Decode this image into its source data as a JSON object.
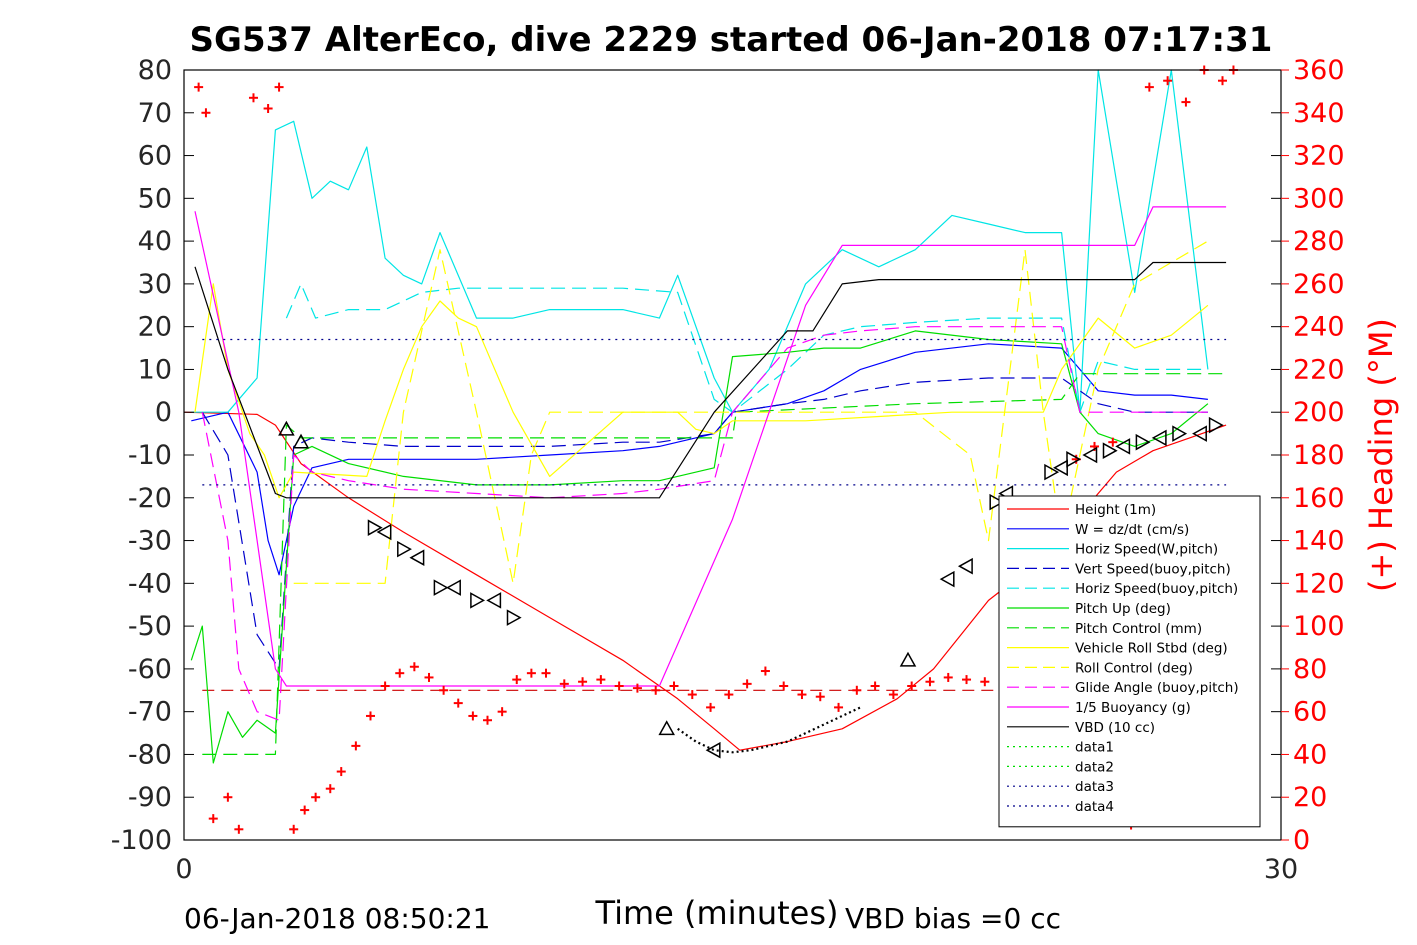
{
  "chart_data": {
    "type": "line",
    "title": "SG537 AlterEco, dive 2229 started 06-Jan-2018 07:17:31",
    "xlabel": "Time (minutes)",
    "ylabel_right": "(+) Heading (°M)",
    "xlim": [
      0,
      30
    ],
    "ylim": [
      -100,
      80
    ],
    "ylim_right": [
      0,
      360
    ],
    "x_ticks": [
      "0",
      "30"
    ],
    "y_ticks": [
      "80",
      "70",
      "60",
      "50",
      "40",
      "30",
      "20",
      "10",
      "0",
      "-10",
      "-20",
      "-30",
      "-40",
      "-50",
      "-60",
      "-70",
      "-80",
      "-90",
      "-100"
    ],
    "y_right_ticks": [
      "360",
      "340",
      "320",
      "300",
      "280",
      "260",
      "240",
      "220",
      "200",
      "180",
      "160",
      "140",
      "120",
      "100",
      "80",
      "60",
      "40",
      "20",
      "0"
    ],
    "footer_left": "06-Jan-2018 08:50:21",
    "footer_right": "VBD bias =0 cc",
    "legend_position": "bottom-right",
    "grid": false,
    "colors": {
      "red": "#ff0000",
      "blue": "#0000ff",
      "cyan": "#00e5e5",
      "green": "#00dd00",
      "yellow": "#ffff00",
      "magenta": "#ff00ff",
      "black": "#000000",
      "darkblue": "#00008b"
    },
    "series": [
      {
        "name": "Height (1m)",
        "color": "#ff0000",
        "style": "solid",
        "x": [
          0.0,
          2.0,
          2.5,
          3.2,
          4.5,
          6.0,
          8.0,
          10.0,
          12.0,
          13.5,
          14.5,
          15.2,
          16.5,
          18.0,
          19.5,
          20.5,
          22.0,
          23.5,
          24.5,
          25.5,
          26.5,
          27.5,
          28.5
        ],
        "y": [
          0,
          -0.5,
          -3,
          -12,
          -20,
          -28,
          -38,
          -48,
          -58,
          -67,
          -74,
          -79,
          -77,
          -74,
          -67,
          -60,
          -44,
          -34,
          -24,
          -14,
          -9,
          -6,
          -3
        ]
      },
      {
        "name": "W = dz/dt (cm/s)",
        "color": "#0000ff",
        "style": "solid",
        "x": [
          0.2,
          1.2,
          2.0,
          2.3,
          2.6,
          3.0,
          3.5,
          4.5,
          6.0,
          8.0,
          10.0,
          12.0,
          13.0,
          14.5,
          15.0,
          16.5,
          17.5,
          18.5,
          20.0,
          22.0,
          24.0,
          24.5,
          25.0,
          26.0,
          27.0,
          28.0
        ],
        "y": [
          -2,
          0,
          -14,
          -30,
          -38,
          -22,
          -13,
          -11,
          -11,
          -11,
          -10,
          -9,
          -8,
          -5,
          0,
          2,
          5,
          10,
          14,
          16,
          15,
          10,
          5,
          4,
          4,
          3
        ]
      },
      {
        "name": "Horiz Speed(W,pitch)",
        "color": "#00e5e5",
        "style": "solid",
        "x": [
          0.2,
          1.2,
          2.0,
          2.5,
          3.0,
          3.5,
          4.0,
          4.5,
          5.0,
          5.5,
          6.0,
          6.5,
          7.0,
          8.0,
          9.0,
          10.0,
          12.0,
          13.0,
          13.5,
          14.5,
          15.0,
          16.0,
          17.0,
          18.0,
          19.0,
          20.0,
          21.0,
          22.0,
          23.0,
          24.0,
          24.5,
          25.0,
          26.0,
          27.0,
          28.0
        ],
        "y": [
          0,
          0,
          8,
          66,
          68,
          50,
          54,
          52,
          62,
          36,
          32,
          30,
          42,
          22,
          22,
          24,
          24,
          22,
          32,
          8,
          0,
          10,
          30,
          38,
          34,
          38,
          46,
          44,
          42,
          42,
          0,
          80,
          28,
          80,
          10
        ]
      },
      {
        "name": "Vert Speed(buoy,pitch)",
        "color": "#0000cc",
        "style": "dashed",
        "x": [
          0.5,
          1.2,
          2.0,
          2.6,
          3.0,
          3.5,
          4.5,
          6.0,
          8.0,
          10.0,
          12.0,
          13.0,
          14.5,
          15.0,
          16.5,
          17.5,
          18.5,
          20.0,
          22.0,
          24.0,
          24.5,
          25.0,
          26.0,
          27.0,
          28.0
        ],
        "y": [
          0,
          -10,
          -52,
          -60,
          -8,
          -6,
          -7,
          -8,
          -8,
          -8,
          -7,
          -7,
          -5,
          0,
          2,
          3,
          5,
          7,
          8,
          8,
          5,
          2,
          0,
          0,
          0
        ]
      },
      {
        "name": "Horiz Speed(buoy,pitch)",
        "color": "#00e5e5",
        "style": "dashed",
        "x": [
          2.8,
          3.2,
          3.6,
          4.5,
          5.5,
          6.5,
          7.5,
          8.5,
          10.0,
          12.0,
          13.5,
          14.5,
          15.0,
          16.5,
          17.5,
          18.5,
          20.0,
          22.0,
          24.0,
          24.5,
          25.0,
          26.0,
          27.0,
          28.0
        ],
        "y": [
          22,
          30,
          22,
          24,
          24,
          28,
          29,
          29,
          29,
          29,
          28,
          3,
          0,
          10,
          18,
          20,
          21,
          22,
          22,
          0,
          12,
          10,
          10,
          10
        ]
      },
      {
        "name": "Pitch Up (deg)",
        "color": "#00dd00",
        "style": "solid",
        "x": [
          0.2,
          0.5,
          0.8,
          1.2,
          1.6,
          2.0,
          2.5,
          3.0,
          3.5,
          4.5,
          6.0,
          8.0,
          10.0,
          12.0,
          13.0,
          14.5,
          15.0,
          16.5,
          17.5,
          18.5,
          20.0,
          22.0,
          24.0,
          24.5,
          25.0,
          26.0,
          27.0,
          28.0
        ],
        "y": [
          -58,
          -50,
          -82,
          -70,
          -76,
          -72,
          -75,
          -10,
          -8,
          -12,
          -15,
          -17,
          -17,
          -16,
          -16,
          -13,
          13,
          14,
          15,
          15,
          19,
          17,
          16,
          0,
          -5,
          -8,
          -5,
          2
        ]
      },
      {
        "name": "Pitch Control (mm)",
        "color": "#00dd00",
        "style": "dashed",
        "x": [
          0.5,
          2.5,
          2.8,
          3.2,
          13.0,
          15.0,
          15.1,
          20.0,
          24.0,
          24.5,
          28.5
        ],
        "y": [
          -80,
          -80,
          -3,
          -6,
          -6,
          -6,
          0,
          2,
          3,
          9,
          9
        ]
      },
      {
        "name": "Vehicle Roll Stbd (deg)",
        "color": "#ffff00",
        "style": "solid",
        "x": [
          0.3,
          0.8,
          1.2,
          1.8,
          2.2,
          2.6,
          3.0,
          5.0,
          5.5,
          6.0,
          6.5,
          7.0,
          7.5,
          8.0,
          9.0,
          10.0,
          12.0,
          13.5,
          14.0,
          14.5,
          15.0,
          17.0,
          19.0,
          21.0,
          23.0,
          23.5,
          24.0,
          25.0,
          26.0,
          27.0,
          28.0
        ],
        "y": [
          0,
          30,
          10,
          -5,
          -10,
          -20,
          -14,
          -15,
          -2,
          10,
          20,
          26,
          22,
          20,
          0,
          -15,
          0,
          0,
          -4,
          -5,
          -2,
          -2,
          -1,
          0,
          0,
          0,
          10,
          22,
          15,
          18,
          25
        ]
      },
      {
        "name": "Roll Control (deg)",
        "color": "#ffff00",
        "style": "dashed",
        "x": [
          3.0,
          5.5,
          6.0,
          7.0,
          8.0,
          9.0,
          9.5,
          10.0,
          12.0,
          15.0,
          17.0,
          20.0,
          21.5,
          22.0,
          23.0,
          23.5,
          24.0,
          25.0,
          26.0,
          27.0,
          28.0
        ],
        "y": [
          -40,
          -40,
          0,
          38,
          0,
          -40,
          -10,
          0,
          0,
          0,
          0,
          0,
          -10,
          -30,
          38,
          0,
          -30,
          10,
          30,
          35,
          40
        ]
      },
      {
        "name": "Glide Angle (buoy,pitch)",
        "color": "#ff00ff",
        "style": "dashed",
        "x": [
          0.5,
          1.2,
          1.5,
          2.0,
          2.6,
          3.0,
          3.5,
          4.5,
          6.0,
          8.0,
          10.0,
          12.0,
          13.0,
          14.5,
          15.0,
          16.5,
          17.5,
          18.5,
          20.0,
          22.0,
          24.0,
          24.5,
          25.0,
          26.0,
          27.0,
          28.0
        ],
        "y": [
          0,
          -30,
          -60,
          -70,
          -72,
          -10,
          -14,
          -16,
          -18,
          -19,
          -20,
          -19,
          -18,
          -16,
          0,
          15,
          18,
          19,
          20,
          20,
          20,
          0,
          0,
          0,
          0,
          0
        ]
      },
      {
        "name": "1/5 Buoyancy (g)",
        "color": "#ff00ff",
        "style": "solid",
        "x": [
          0.3,
          1.5,
          2.5,
          2.8,
          13.0,
          15.0,
          17.0,
          18.0,
          22.0,
          26.0,
          26.5,
          28.5
        ],
        "y": [
          47,
          0,
          -60,
          -64,
          -64,
          -25,
          25,
          39,
          39,
          39,
          48,
          48
        ]
      },
      {
        "name": "VBD (10 cc)",
        "color": "#000000",
        "style": "solid",
        "x": [
          0.3,
          1.2,
          2.5,
          2.8,
          13.0,
          14.5,
          16.5,
          17.2,
          18.0,
          19.0,
          25.0,
          26.0,
          26.5,
          28.5
        ],
        "y": [
          34,
          10,
          -19,
          -20,
          -20,
          0,
          19,
          19,
          30,
          31,
          31,
          31,
          35,
          35
        ]
      },
      {
        "name": "data1",
        "color": "#00dd00",
        "style": "dotted",
        "x": [],
        "y": []
      },
      {
        "name": "data2",
        "color": "#00dd00",
        "style": "dotted",
        "x": [],
        "y": []
      },
      {
        "name": "data3",
        "color": "#00008b",
        "style": "dotted",
        "x": [
          0.5,
          28.5
        ],
        "y": [
          17,
          17
        ]
      },
      {
        "name": "data4",
        "color": "#00008b",
        "style": "dotted",
        "x": [
          0.5,
          28.5
        ],
        "y": [
          -17,
          -17
        ]
      }
    ],
    "heading_target": {
      "color": "#cc0000",
      "style": "dashed",
      "value": 70
    },
    "heading": {
      "color": "#ff0000",
      "marker": "+",
      "x": [
        0.4,
        0.6,
        0.8,
        1.2,
        1.5,
        1.9,
        2.3,
        2.6,
        3.0,
        3.3,
        3.6,
        4.0,
        4.3,
        4.7,
        5.1,
        5.5,
        5.9,
        6.3,
        6.7,
        7.1,
        7.5,
        7.9,
        8.3,
        8.7,
        9.1,
        9.5,
        9.9,
        10.4,
        10.9,
        11.4,
        11.9,
        12.4,
        12.9,
        13.4,
        13.9,
        14.4,
        14.9,
        15.4,
        15.9,
        16.4,
        16.9,
        17.4,
        17.9,
        18.4,
        18.9,
        19.4,
        19.9,
        20.4,
        20.9,
        21.4,
        21.9,
        22.4,
        22.9,
        23.4,
        23.9,
        24.4,
        24.9,
        25.4,
        25.9,
        26.4,
        26.9,
        27.4,
        27.9,
        28.4,
        28.7
      ],
      "y": [
        352,
        340,
        10,
        20,
        5,
        347,
        342,
        352,
        5,
        14,
        20,
        24,
        32,
        44,
        58,
        72,
        78,
        81,
        76,
        70,
        64,
        58,
        56,
        60,
        75,
        78,
        78,
        73,
        74,
        75,
        72,
        71,
        70,
        72,
        68,
        62,
        68,
        73,
        79,
        72,
        68,
        67,
        62,
        70,
        72,
        68,
        72,
        74,
        76,
        75,
        74,
        80,
        82,
        92,
        120,
        178,
        184,
        186,
        7,
        352,
        355,
        345,
        360,
        355,
        360
      ]
    },
    "markers": {
      "color": "#000000",
      "x": [
        2.8,
        3.2,
        5.2,
        5.5,
        6.0,
        6.4,
        7.0,
        7.4,
        8.0,
        8.5,
        9.0,
        13.2,
        14.5,
        19.8,
        20.9,
        21.4,
        22.2,
        22.5,
        23.7,
        24.0,
        24.3,
        24.8,
        25.3,
        25.7,
        26.2,
        26.7,
        27.2,
        27.8,
        28.2
      ],
      "y": [
        -4,
        -7,
        -27,
        -28,
        -32,
        -34,
        -41,
        -41,
        -44,
        -44,
        -48,
        -74,
        -79,
        -58,
        -39,
        -36,
        -21,
        -19,
        -14,
        -13,
        -11,
        -10,
        -9,
        -8,
        -7,
        -6,
        -5,
        -5,
        -3
      ],
      "dir": [
        "up",
        "up",
        "right",
        "left",
        "right",
        "left",
        "right",
        "left",
        "right",
        "left",
        "right",
        "up",
        "left",
        "up",
        "left",
        "left",
        "right",
        "left",
        "right",
        "left",
        "right",
        "left",
        "right",
        "left",
        "right",
        "left",
        "right",
        "left",
        "right"
      ]
    },
    "dotted_curve": {
      "color": "#000000",
      "x": [
        13.5,
        14.0,
        14.5,
        15.0,
        15.5,
        16.0,
        16.5,
        17.0,
        17.5,
        18.0,
        18.5
      ],
      "y": [
        -74,
        -77,
        -79,
        -79.5,
        -79,
        -78,
        -77,
        -75,
        -73,
        -71,
        -69
      ]
    }
  }
}
